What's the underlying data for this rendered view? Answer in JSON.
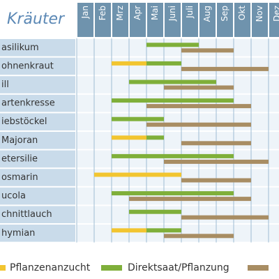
{
  "chart_data": {
    "type": "gantt",
    "title": "Kräuter",
    "categories": [
      "Jan",
      "Feb",
      "Mrz",
      "Apr",
      "Mai",
      "Juni",
      "Juli",
      "Aug",
      "Sep",
      "Okt",
      "Nov",
      "Dez"
    ],
    "rows": [
      "asilikum",
      "ohnenkraut",
      "ill",
      "artenkresse",
      "iebstöckel",
      "Majoran",
      "etersilie",
      "osmarin",
      "ucola",
      "chnittlauch",
      "hymian"
    ],
    "series": [
      {
        "name": "Pflanzenanzucht",
        "color": "#f2c530",
        "values": [
          null,
          [
            2,
            4
          ],
          null,
          null,
          null,
          [
            2,
            4
          ],
          null,
          [
            1,
            6
          ],
          null,
          null,
          [
            2,
            4
          ]
        ]
      },
      {
        "name": "Direktsaat/Pflanzung",
        "color": "#7faf3a",
        "values": [
          [
            4,
            7
          ],
          [
            4,
            6
          ],
          [
            3,
            8
          ],
          [
            2,
            9
          ],
          [
            2,
            5
          ],
          [
            4,
            5
          ],
          [
            2,
            9
          ],
          null,
          [
            2,
            9
          ],
          [
            3,
            6
          ],
          [
            4,
            6
          ]
        ]
      },
      {
        "color": "#a88d63",
        "values": [
          [
            6,
            9
          ],
          [
            6,
            11
          ],
          [
            5,
            9
          ],
          [
            4,
            10
          ],
          [
            4,
            10
          ],
          [
            6,
            10
          ],
          [
            5,
            11
          ],
          [
            6,
            10
          ],
          [
            3,
            10
          ],
          [
            6,
            11
          ],
          [
            5,
            9
          ]
        ]
      }
    ]
  }
}
